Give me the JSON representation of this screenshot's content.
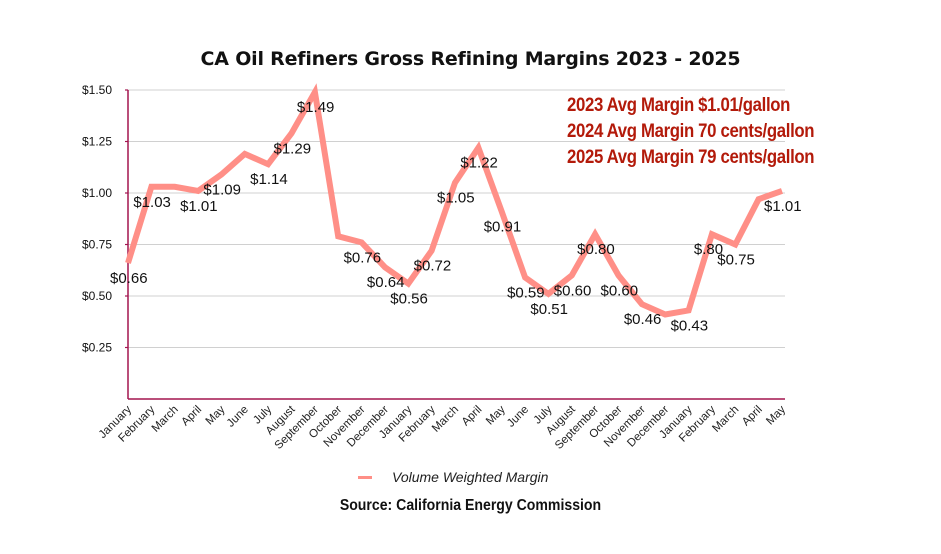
{
  "chart_data": {
    "type": "line",
    "title": "CA Oil Refiners Gross Refining Margins 2023 - 2025",
    "xlabel": "",
    "ylabel": "",
    "ylim": [
      0,
      1.5
    ],
    "yticks": [
      0.25,
      0.5,
      0.75,
      1.0,
      1.25,
      1.5
    ],
    "ytick_labels": [
      "$0.25",
      "$0.50",
      "$0.75",
      "$1.00",
      "$1.25",
      "$1.50"
    ],
    "grid": true,
    "categories": [
      "January",
      "February",
      "March",
      "April",
      "May",
      "June",
      "July",
      "August",
      "September",
      "October",
      "November",
      "December",
      "January",
      "February",
      "March",
      "April",
      "May",
      "June",
      "July",
      "August",
      "September",
      "October",
      "November",
      "December",
      "January",
      "February",
      "March",
      "April",
      "May"
    ],
    "series": [
      {
        "name": "Volume Weighted Margin",
        "color": "#ff8f87",
        "values": [
          0.66,
          1.03,
          1.03,
          1.01,
          1.09,
          1.19,
          1.14,
          1.29,
          1.49,
          0.79,
          0.76,
          0.64,
          0.56,
          0.72,
          1.05,
          1.22,
          0.91,
          0.59,
          0.51,
          0.6,
          0.8,
          0.6,
          0.46,
          0.41,
          0.43,
          0.8,
          0.75,
          0.97,
          1.01
        ],
        "data_labels": [
          {
            "index": 0,
            "text": "$0.66"
          },
          {
            "index": 1,
            "text": "$1.03"
          },
          {
            "index": 3,
            "text": "$1.01"
          },
          {
            "index": 4,
            "text": "$1.09"
          },
          {
            "index": 6,
            "text": "$1.14"
          },
          {
            "index": 7,
            "text": "$1.29"
          },
          {
            "index": 8,
            "text": "$1.49"
          },
          {
            "index": 10,
            "text": "$0.76"
          },
          {
            "index": 11,
            "text": "$0.64"
          },
          {
            "index": 12,
            "text": "$0.56"
          },
          {
            "index": 13,
            "text": "$0.72"
          },
          {
            "index": 14,
            "text": "$1.05"
          },
          {
            "index": 15,
            "text": "$1.22"
          },
          {
            "index": 16,
            "text": "$0.91"
          },
          {
            "index": 17,
            "text": "$0.59"
          },
          {
            "index": 18,
            "text": "$0.51"
          },
          {
            "index": 19,
            "text": "$0.60"
          },
          {
            "index": 20,
            "text": "$0.80"
          },
          {
            "index": 21,
            "text": "$0.60"
          },
          {
            "index": 22,
            "text": "$0.46"
          },
          {
            "index": 24,
            "text": "$0.43"
          },
          {
            "index": 25,
            "text": "$.80"
          },
          {
            "index": 26,
            "text": "$0.75"
          },
          {
            "index": 28,
            "text": "$1.01"
          }
        ]
      }
    ],
    "legend": {
      "position": "bottom",
      "entries": [
        "Volume Weighted Margin"
      ]
    },
    "annotations": [
      "2023 Avg Margin $1.01/gallon",
      "2024 Avg Margin 70 cents/gallon",
      "2025 Avg Margin 79 cents/gallon"
    ],
    "source": "Source: California Energy Commission"
  },
  "colors": {
    "line": "#ff8f87",
    "axis": "#a3154f",
    "grid": "#d0d0d0",
    "annotation": "#b31a0a"
  }
}
